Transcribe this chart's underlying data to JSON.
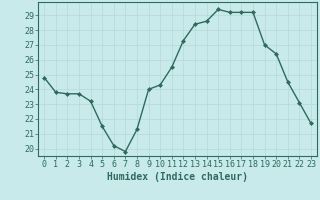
{
  "x": [
    0,
    1,
    2,
    3,
    4,
    5,
    6,
    7,
    8,
    9,
    10,
    11,
    12,
    13,
    14,
    15,
    16,
    17,
    18,
    19,
    20,
    21,
    22,
    23
  ],
  "y": [
    24.8,
    23.8,
    23.7,
    23.7,
    23.2,
    21.5,
    20.2,
    19.8,
    21.3,
    24.0,
    24.3,
    25.5,
    27.3,
    28.4,
    28.6,
    29.4,
    29.2,
    29.2,
    29.2,
    27.0,
    26.4,
    24.5,
    23.1,
    21.7
  ],
  "line_color": "#2e6b5e",
  "bg_color": "#c8eaea",
  "grid_color": "#b8d8d8",
  "xlabel": "Humidex (Indice chaleur)",
  "xlim": [
    -0.5,
    23.5
  ],
  "ylim": [
    19.5,
    29.9
  ],
  "yticks": [
    20,
    21,
    22,
    23,
    24,
    25,
    26,
    27,
    28,
    29
  ],
  "xticks": [
    0,
    1,
    2,
    3,
    4,
    5,
    6,
    7,
    8,
    9,
    10,
    11,
    12,
    13,
    14,
    15,
    16,
    17,
    18,
    19,
    20,
    21,
    22,
    23
  ],
  "marker": "D",
  "markersize": 2.0,
  "linewidth": 1.0,
  "xlabel_fontsize": 7.0,
  "tick_fontsize": 6.0
}
